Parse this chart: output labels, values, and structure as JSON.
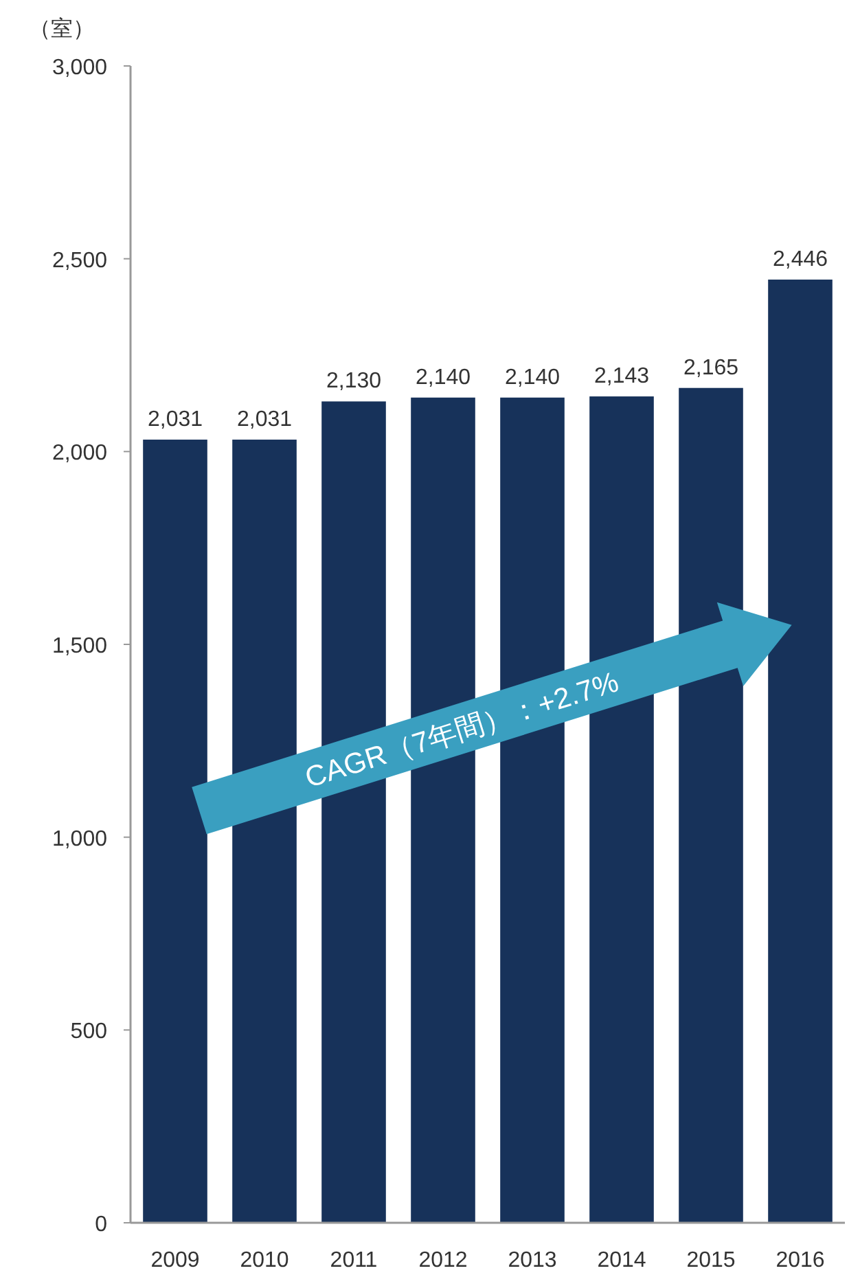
{
  "chart_data": {
    "type": "bar",
    "ylabel": "（室）",
    "categories": [
      "2009",
      "2010",
      "2011",
      "2012",
      "2013",
      "2014",
      "2015",
      "2016"
    ],
    "values": [
      2031,
      2031,
      2130,
      2140,
      2140,
      2143,
      2165,
      2446
    ],
    "value_labels": [
      "2,031",
      "2,031",
      "2,130",
      "2,140",
      "2,140",
      "2,143",
      "2,165",
      "2,446"
    ],
    "color": "#17325a",
    "ylim": [
      0,
      3000
    ],
    "yticks": [
      {
        "value": 0,
        "label": "0"
      },
      {
        "value": 500,
        "label": "500"
      },
      {
        "value": 1000,
        "label": "1,000"
      },
      {
        "value": 1500,
        "label": "1,500"
      },
      {
        "value": 2000,
        "label": "2,000"
      },
      {
        "value": 2500,
        "label": "2,500"
      },
      {
        "value": 3000,
        "label": "3,000"
      }
    ],
    "annotations": [
      "CAGR（7年間）：+2.7%"
    ],
    "grid": false
  }
}
